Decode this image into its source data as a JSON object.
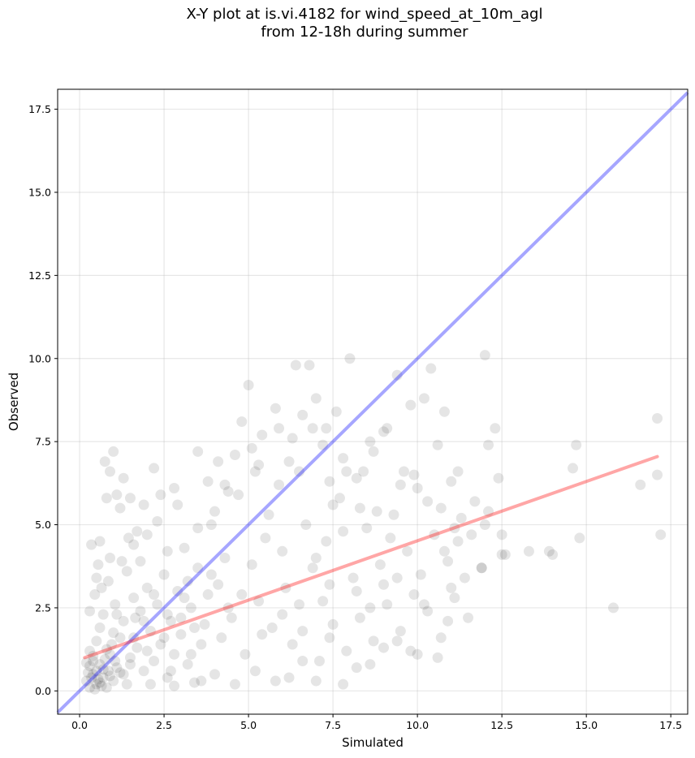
{
  "chart_data": {
    "type": "scatter",
    "title_lines": [
      "X-Y plot at is.vi.4182 for wind_speed_at_10m_agl",
      "from 12-18h during summer"
    ],
    "xlabel": "Simulated",
    "ylabel": "Observed",
    "xlim": [
      -0.65,
      18.0
    ],
    "ylim": [
      -0.7,
      18.1
    ],
    "xticks": [
      0.0,
      2.5,
      5.0,
      7.5,
      10.0,
      12.5,
      15.0,
      17.5
    ],
    "yticks": [
      0.0,
      2.5,
      5.0,
      7.5,
      10.0,
      12.5,
      15.0,
      17.5
    ],
    "xtick_labels": [
      "0.0",
      "2.5",
      "5.0",
      "7.5",
      "10.0",
      "12.5",
      "15.0",
      "17.5"
    ],
    "ytick_labels": [
      "0.0",
      "2.5",
      "5.0",
      "7.5",
      "10.0",
      "12.5",
      "15.0",
      "17.5"
    ],
    "grid": true,
    "point_color": "#000000",
    "point_alpha": 0.1,
    "identity_line": {
      "color": "#0000ff",
      "alpha": 0.35,
      "x": [
        -0.65,
        18.0
      ],
      "y": [
        -0.65,
        18.0
      ]
    },
    "regression_line": {
      "color": "#ff0000",
      "alpha": 0.35,
      "x": [
        0.15,
        17.1
      ],
      "y": [
        1.0,
        7.05
      ]
    },
    "series": [
      {
        "points": [
          [
            0.2,
            0.3
          ],
          [
            0.3,
            0.1
          ],
          [
            0.4,
            0.5
          ],
          [
            0.5,
            0.2
          ],
          [
            0.6,
            0.8
          ],
          [
            0.3,
            1.2
          ],
          [
            0.5,
            1.5
          ],
          [
            0.7,
            0.4
          ],
          [
            0.8,
            0.1
          ],
          [
            0.4,
            0.9
          ],
          [
            0.6,
            1.9
          ],
          [
            0.9,
            1.1
          ],
          [
            1.0,
            0.3
          ],
          [
            1.1,
            0.7
          ],
          [
            0.7,
            2.3
          ],
          [
            1.2,
            1.6
          ],
          [
            1.3,
            2.1
          ],
          [
            1.4,
            0.2
          ],
          [
            1.5,
            1.0
          ],
          [
            1.6,
            2.8
          ],
          [
            0.5,
            0.6
          ],
          [
            0.35,
            0.4
          ],
          [
            0.45,
            0.05
          ],
          [
            0.55,
            0.35
          ],
          [
            0.65,
            0.15
          ],
          [
            0.25,
            0.55
          ],
          [
            0.75,
            0.95
          ],
          [
            0.85,
            0.6
          ],
          [
            0.95,
            1.4
          ],
          [
            1.05,
            0.9
          ],
          [
            0.3,
            0.75
          ],
          [
            0.4,
            1.05
          ],
          [
            0.2,
            0.85
          ],
          [
            0.6,
            0.25
          ],
          [
            0.7,
            0.65
          ],
          [
            0.8,
            1.25
          ],
          [
            0.9,
            0.45
          ],
          [
            1.0,
            1.75
          ],
          [
            1.1,
            2.3
          ],
          [
            1.2,
            0.55
          ],
          [
            1.7,
            1.3
          ],
          [
            1.8,
            2.4
          ],
          [
            1.9,
            0.6
          ],
          [
            2.0,
            3.1
          ],
          [
            2.1,
            1.8
          ],
          [
            2.2,
            0.9
          ],
          [
            2.3,
            2.6
          ],
          [
            2.4,
            1.4
          ],
          [
            2.5,
            3.5
          ],
          [
            2.6,
            0.4
          ],
          [
            2.7,
            2.1
          ],
          [
            2.8,
            1.1
          ],
          [
            2.9,
            3.0
          ],
          [
            3.0,
            1.7
          ],
          [
            3.1,
            4.3
          ],
          [
            3.2,
            0.8
          ],
          [
            3.3,
            2.5
          ],
          [
            3.4,
            1.9
          ],
          [
            3.5,
            3.7
          ],
          [
            3.6,
            0.3
          ],
          [
            1.8,
            3.9
          ],
          [
            2.0,
            4.7
          ],
          [
            2.3,
            5.1
          ],
          [
            2.6,
            4.2
          ],
          [
            2.9,
            5.6
          ],
          [
            3.2,
            3.3
          ],
          [
            3.5,
            4.9
          ],
          [
            3.8,
            2.9
          ],
          [
            4.0,
            5.4
          ],
          [
            4.2,
            1.6
          ],
          [
            1.4,
            3.6
          ],
          [
            1.6,
            4.4
          ],
          [
            1.9,
            5.6
          ],
          [
            2.2,
            6.7
          ],
          [
            1.1,
            5.9
          ],
          [
            1.3,
            6.4
          ],
          [
            0.9,
            6.6
          ],
          [
            1.0,
            7.2
          ],
          [
            0.8,
            5.8
          ],
          [
            0.75,
            6.9
          ],
          [
            0.6,
            4.5
          ],
          [
            0.5,
            3.4
          ],
          [
            0.9,
            4.0
          ],
          [
            1.2,
            5.5
          ],
          [
            1.5,
            5.8
          ],
          [
            1.7,
            4.8
          ],
          [
            2.4,
            5.9
          ],
          [
            2.8,
            6.1
          ],
          [
            3.5,
            7.2
          ],
          [
            3.9,
            5.0
          ],
          [
            4.1,
            3.2
          ],
          [
            4.3,
            4.0
          ],
          [
            4.5,
            2.2
          ],
          [
            4.7,
            5.9
          ],
          [
            4.9,
            1.1
          ],
          [
            5.1,
            3.8
          ],
          [
            5.3,
            2.7
          ],
          [
            5.5,
            4.6
          ],
          [
            5.7,
            1.9
          ],
          [
            5.9,
            6.2
          ],
          [
            4.4,
            6.0
          ],
          [
            4.6,
            7.1
          ],
          [
            4.8,
            8.1
          ],
          [
            5.0,
            9.2
          ],
          [
            5.2,
            6.6
          ],
          [
            5.4,
            7.7
          ],
          [
            5.6,
            5.3
          ],
          [
            5.8,
            8.5
          ],
          [
            6.0,
            4.2
          ],
          [
            6.2,
            6.9
          ],
          [
            6.1,
            3.1
          ],
          [
            6.3,
            1.4
          ],
          [
            6.5,
            2.6
          ],
          [
            6.7,
            5.0
          ],
          [
            6.9,
            3.7
          ],
          [
            7.1,
            0.9
          ],
          [
            7.3,
            4.5
          ],
          [
            7.5,
            2.0
          ],
          [
            7.7,
            5.8
          ],
          [
            7.9,
            1.2
          ],
          [
            6.4,
            9.8
          ],
          [
            6.8,
            9.8
          ],
          [
            6.6,
            8.3
          ],
          [
            7.0,
            8.8
          ],
          [
            7.2,
            7.4
          ],
          [
            7.4,
            6.3
          ],
          [
            7.6,
            8.4
          ],
          [
            7.8,
            7.0
          ],
          [
            8.0,
            10.0
          ],
          [
            8.2,
            6.4
          ],
          [
            8.1,
            3.4
          ],
          [
            8.3,
            2.2
          ],
          [
            8.5,
            4.9
          ],
          [
            8.7,
            1.5
          ],
          [
            8.9,
            3.8
          ],
          [
            9.1,
            2.6
          ],
          [
            9.3,
            5.3
          ],
          [
            9.5,
            1.8
          ],
          [
            9.7,
            4.2
          ],
          [
            9.9,
            2.9
          ],
          [
            8.4,
            6.6
          ],
          [
            8.6,
            7.5
          ],
          [
            8.8,
            5.4
          ],
          [
            9.0,
            7.8
          ],
          [
            9.2,
            4.6
          ],
          [
            9.4,
            9.5
          ],
          [
            9.6,
            6.6
          ],
          [
            9.8,
            8.6
          ],
          [
            10.0,
            6.1
          ],
          [
            10.2,
            8.8
          ],
          [
            10.1,
            3.5
          ],
          [
            10.3,
            2.4
          ],
          [
            10.5,
            4.7
          ],
          [
            10.7,
            1.6
          ],
          [
            10.9,
            3.9
          ],
          [
            11.1,
            2.8
          ],
          [
            11.3,
            5.2
          ],
          [
            11.5,
            2.2
          ],
          [
            11.7,
            5.7
          ],
          [
            11.9,
            3.7
          ],
          [
            10.4,
            9.7
          ],
          [
            10.6,
            7.4
          ],
          [
            10.8,
            8.4
          ],
          [
            11.0,
            6.3
          ],
          [
            11.2,
            6.6
          ],
          [
            12.0,
            10.1
          ],
          [
            12.1,
            7.4
          ],
          [
            12.3,
            7.9
          ],
          [
            12.4,
            6.4
          ],
          [
            12.5,
            4.7
          ],
          [
            12.1,
            5.4
          ],
          [
            12.6,
            4.1
          ],
          [
            13.3,
            4.2
          ],
          [
            14.0,
            4.1
          ],
          [
            14.6,
            6.7
          ],
          [
            14.7,
            7.4
          ],
          [
            14.8,
            4.6
          ],
          [
            15.8,
            2.5
          ],
          [
            16.6,
            6.2
          ],
          [
            17.1,
            8.2
          ],
          [
            17.1,
            6.5
          ],
          [
            17.2,
            4.7
          ],
          [
            3.0,
            2.2
          ],
          [
            2.5,
            1.6
          ],
          [
            2.0,
            1.2
          ],
          [
            1.5,
            0.8
          ],
          [
            3.3,
            1.1
          ],
          [
            3.7,
            2.0
          ],
          [
            2.7,
            0.6
          ],
          [
            2.2,
            2.9
          ],
          [
            1.9,
            2.1
          ],
          [
            1.6,
            1.6
          ],
          [
            1.3,
            0.5
          ],
          [
            2.1,
            0.2
          ],
          [
            2.8,
            0.15
          ],
          [
            3.4,
            0.25
          ],
          [
            4.0,
            0.5
          ],
          [
            4.6,
            0.2
          ],
          [
            5.2,
            0.6
          ],
          [
            5.8,
            0.3
          ],
          [
            4.4,
            2.5
          ],
          [
            3.9,
            3.5
          ],
          [
            3.6,
            1.4
          ],
          [
            3.1,
            2.8
          ],
          [
            2.6,
            2.3
          ],
          [
            4.8,
            2.9
          ],
          [
            5.4,
            1.7
          ],
          [
            6.0,
            2.3
          ],
          [
            6.6,
            1.8
          ],
          [
            7.2,
            2.7
          ],
          [
            0.3,
            2.4
          ],
          [
            0.45,
            2.9
          ],
          [
            0.55,
            3.8
          ],
          [
            0.35,
            4.4
          ],
          [
            0.65,
            3.1
          ],
          [
            0.85,
            3.3
          ],
          [
            1.05,
            2.6
          ],
          [
            1.25,
            3.9
          ],
          [
            1.45,
            4.6
          ],
          [
            1.65,
            2.2
          ],
          [
            3.8,
            6.3
          ],
          [
            4.1,
            6.9
          ],
          [
            4.3,
            6.2
          ],
          [
            5.1,
            7.3
          ],
          [
            5.3,
            6.8
          ],
          [
            5.9,
            7.9
          ],
          [
            6.3,
            7.6
          ],
          [
            6.5,
            6.6
          ],
          [
            6.9,
            7.9
          ],
          [
            7.3,
            7.9
          ],
          [
            7.5,
            5.6
          ],
          [
            7.9,
            6.6
          ],
          [
            8.3,
            5.5
          ],
          [
            8.7,
            7.2
          ],
          [
            9.1,
            7.9
          ],
          [
            9.5,
            6.2
          ],
          [
            9.9,
            6.5
          ],
          [
            10.3,
            5.7
          ],
          [
            10.7,
            5.5
          ],
          [
            11.1,
            4.9
          ],
          [
            7.0,
            4.0
          ],
          [
            7.4,
            3.2
          ],
          [
            7.8,
            4.8
          ],
          [
            8.2,
            3.0
          ],
          [
            8.6,
            2.5
          ],
          [
            9.0,
            3.2
          ],
          [
            9.4,
            3.4
          ],
          [
            9.8,
            1.2
          ],
          [
            10.2,
            2.6
          ],
          [
            10.6,
            1.0
          ],
          [
            6.2,
            0.4
          ],
          [
            6.6,
            0.9
          ],
          [
            7.0,
            0.3
          ],
          [
            7.4,
            1.6
          ],
          [
            7.8,
            0.2
          ],
          [
            8.2,
            0.7
          ],
          [
            8.6,
            0.8
          ],
          [
            9.0,
            1.3
          ],
          [
            9.4,
            1.5
          ],
          [
            10.0,
            1.1
          ],
          [
            11.6,
            4.7
          ],
          [
            11.9,
            3.7
          ],
          [
            12.5,
            4.1
          ],
          [
            13.9,
            4.2
          ],
          [
            11.4,
            3.4
          ],
          [
            11.2,
            4.5
          ],
          [
            10.9,
            2.1
          ],
          [
            12.0,
            5.0
          ],
          [
            11.0,
            3.1
          ],
          [
            10.8,
            4.2
          ]
        ]
      }
    ]
  }
}
